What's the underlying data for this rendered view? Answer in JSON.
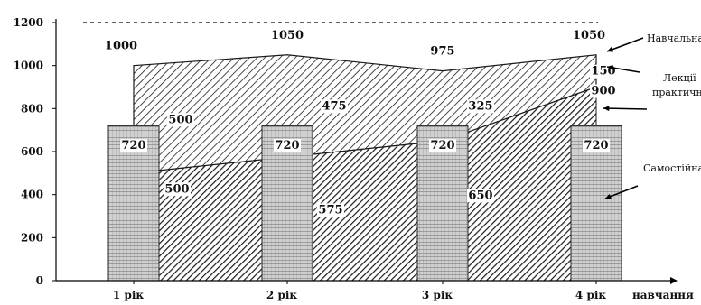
{
  "chart_data": {
    "type": "area",
    "categories": [
      "1 рік",
      "2 рік",
      "3 рік",
      "4 рік"
    ],
    "xlabel": "навчання",
    "ylabel": "",
    "ylim": [
      0,
      1200
    ],
    "yticks": [
      0,
      200,
      400,
      600,
      800,
      1000,
      1200
    ],
    "reference_line": 1200,
    "grid": false,
    "totals": [
      1000,
      1050,
      975,
      1050
    ],
    "series": [
      {
        "name": "Самостійна робота студента",
        "chart_type": "bar",
        "values": [
          720,
          720,
          720,
          720
        ],
        "value_labels": [
          "720",
          "720",
          "720",
          "720"
        ]
      },
      {
        "name": "Практичні роботи",
        "chart_type": "area",
        "values": [
          500,
          575,
          650,
          900
        ],
        "value_labels": [
          "500",
          "575",
          "650",
          "900"
        ]
      },
      {
        "name": "Лекції",
        "chart_type": "area",
        "values": [
          500,
          475,
          325,
          150
        ],
        "value_labels": [
          "500",
          "475",
          "325",
          "150"
        ]
      }
    ],
    "legend": [
      "Навчальна робота в інституті",
      "Лекції",
      "практичні роботи",
      "Самостійна робота студента"
    ],
    "legend_placement": "right",
    "colors": {
      "axis": "#000000",
      "hatch": "#1a1a1a",
      "bar_fill": "#c8c8c8",
      "background": "#ffffff"
    }
  }
}
